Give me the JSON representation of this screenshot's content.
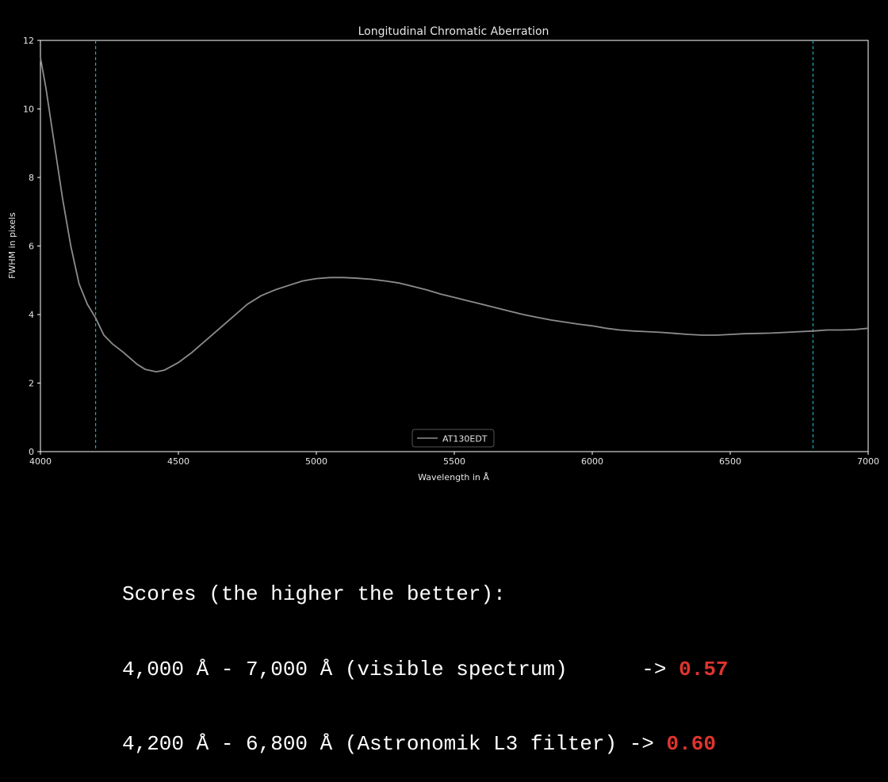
{
  "chart_data": {
    "type": "line",
    "title": "Longitudinal Chromatic Aberration",
    "xlabel": "Wavelength in Å",
    "ylabel": "FWHM in pixels",
    "xlim": [
      4000,
      7000
    ],
    "ylim": [
      0,
      12
    ],
    "xticks": [
      4000,
      4500,
      5000,
      5500,
      6000,
      6500,
      7000
    ],
    "yticks": [
      0,
      2,
      4,
      6,
      8,
      10,
      12
    ],
    "grid": false,
    "legend_position": "lower center",
    "vlines": [
      4200,
      6800
    ],
    "colors": {
      "background": "#000000",
      "axes": "#ffffff",
      "series": "#8c8c8c",
      "vlines": "#1fa3b5"
    },
    "series": [
      {
        "name": "AT130EDT",
        "x": [
          4000,
          4020,
          4050,
          4080,
          4110,
          4140,
          4170,
          4200,
          4230,
          4260,
          4300,
          4350,
          4380,
          4420,
          4450,
          4500,
          4550,
          4600,
          4650,
          4700,
          4750,
          4800,
          4850,
          4900,
          4950,
          5000,
          5050,
          5100,
          5150,
          5200,
          5250,
          5300,
          5350,
          5400,
          5450,
          5500,
          5550,
          5600,
          5650,
          5700,
          5750,
          5800,
          5850,
          5900,
          5950,
          6000,
          6050,
          6100,
          6150,
          6200,
          6250,
          6300,
          6350,
          6400,
          6450,
          6500,
          6550,
          6600,
          6650,
          6700,
          6750,
          6800,
          6850,
          6900,
          6950,
          7000
        ],
        "y": [
          11.5,
          10.6,
          9.0,
          7.4,
          6.0,
          4.9,
          4.3,
          3.9,
          3.4,
          3.15,
          2.9,
          2.55,
          2.4,
          2.33,
          2.38,
          2.6,
          2.9,
          3.25,
          3.6,
          3.95,
          4.3,
          4.55,
          4.72,
          4.85,
          4.98,
          5.05,
          5.08,
          5.08,
          5.06,
          5.03,
          4.98,
          4.92,
          4.82,
          4.72,
          4.6,
          4.5,
          4.4,
          4.3,
          4.2,
          4.1,
          4.0,
          3.92,
          3.84,
          3.78,
          3.72,
          3.67,
          3.6,
          3.55,
          3.52,
          3.5,
          3.48,
          3.45,
          3.42,
          3.4,
          3.4,
          3.42,
          3.44,
          3.45,
          3.46,
          3.48,
          3.5,
          3.52,
          3.55,
          3.55,
          3.56,
          3.6
        ]
      }
    ]
  },
  "scores": {
    "heading": "Scores (the higher the better):",
    "rows": [
      {
        "label": "4,000 Å - 7,000 Å (visible spectrum)      -> ",
        "value": "0.57"
      },
      {
        "label": "4,200 Å - 6,800 Å (Astronomik L3 filter) -> ",
        "value": "0.60"
      }
    ]
  }
}
